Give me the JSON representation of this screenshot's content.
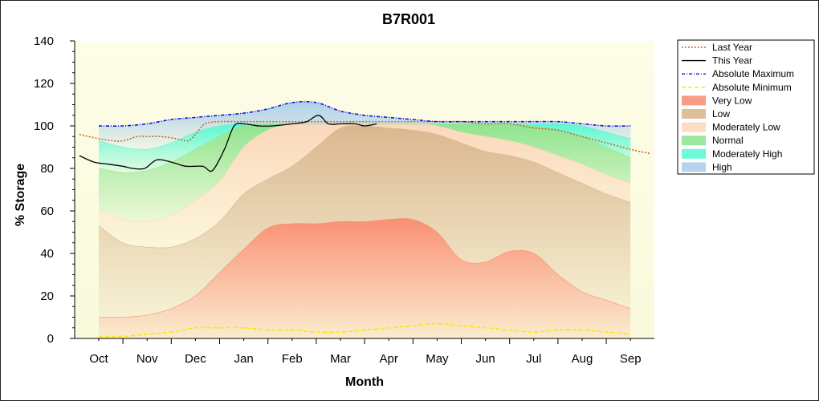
{
  "chart_data": {
    "type": "area",
    "title": "B7R001",
    "xlabel": "Month",
    "ylabel": "% Storage",
    "ylim": [
      0,
      140
    ],
    "yticks": [
      0,
      20,
      40,
      60,
      80,
      100,
      120,
      140
    ],
    "categories": [
      "Oct",
      "Nov",
      "Dec",
      "Jan",
      "Feb",
      "Mar",
      "Apr",
      "May",
      "Jun",
      "Jul",
      "Aug",
      "Sep"
    ],
    "legend_position": "right",
    "bands": [
      {
        "name": "Very Low",
        "color": "#f98a6e",
        "x": [
          0,
          0.5,
          1,
          1.5,
          2,
          2.5,
          3,
          3.5,
          4,
          4.5,
          5,
          5.5,
          6,
          6.5,
          7,
          7.5,
          8,
          8.5,
          9,
          9.5,
          10,
          10.5,
          11
        ],
        "lower": [
          0,
          0,
          0,
          0,
          0,
          0,
          0,
          0,
          0,
          0,
          0,
          0,
          0,
          0,
          0,
          0,
          0,
          0,
          0,
          0,
          0,
          0,
          0
        ],
        "upper": [
          10,
          10,
          11,
          14,
          20,
          31,
          42,
          52,
          54,
          54,
          55,
          55,
          56,
          56,
          50,
          37,
          36,
          41,
          40,
          30,
          22,
          18,
          14
        ]
      },
      {
        "name": "Low",
        "color": "#d9b38b",
        "x": [
          0,
          0.5,
          1,
          1.5,
          2,
          2.5,
          3,
          3.5,
          4,
          4.5,
          5,
          5.5,
          6,
          6.5,
          7,
          7.5,
          8,
          8.5,
          9,
          9.5,
          10,
          10.5,
          11
        ],
        "upper": [
          53,
          45,
          43,
          43,
          47,
          55,
          68,
          75,
          81,
          90,
          99,
          100,
          99,
          98,
          96,
          92,
          88,
          86,
          83,
          78,
          73,
          68,
          64
        ]
      },
      {
        "name": "Moderately Low",
        "color": "#fbd6b8",
        "x": [
          0,
          0.5,
          1,
          1.5,
          2,
          2.5,
          3,
          3.5,
          4,
          4.5,
          5,
          5.5,
          6,
          6.5,
          7,
          7.5,
          8,
          8.5,
          9,
          9.5,
          10,
          10.5,
          11
        ],
        "upper": [
          61,
          56,
          55,
          58,
          65,
          74,
          90,
          98,
          101,
          101,
          101,
          101,
          101,
          101,
          100,
          97,
          95,
          93,
          90,
          86,
          82,
          77,
          73
        ]
      },
      {
        "name": "Normal",
        "color": "#8ae38a",
        "x": [
          0,
          0.5,
          1,
          1.5,
          2,
          2.5,
          3,
          3.5,
          4,
          4.5,
          5,
          5.5,
          6,
          6.5,
          7,
          7.5,
          8,
          8.5,
          9,
          9.5,
          10,
          10.5,
          11
        ],
        "upper": [
          80,
          78,
          79,
          83,
          89,
          95,
          100,
          101,
          101,
          101,
          101,
          101,
          101,
          101,
          101,
          101,
          101,
          101,
          100,
          98,
          95,
          90,
          85
        ]
      },
      {
        "name": "Moderately High",
        "color": "#54f7d2",
        "x": [
          0,
          0.5,
          1,
          1.5,
          2,
          2.5,
          3,
          3.5,
          4,
          4.5,
          5,
          5.5,
          6,
          6.5,
          7,
          7.5,
          8,
          8.5,
          9,
          9.5,
          10,
          10.5,
          11
        ],
        "upper": [
          93,
          90,
          89,
          92,
          97,
          100,
          101,
          101,
          101,
          101,
          101,
          101,
          101,
          101,
          101,
          101,
          101,
          101,
          101,
          101,
          100,
          97,
          94
        ]
      },
      {
        "name": "High",
        "color": "#a9cdea",
        "x": [
          0,
          0.5,
          1,
          1.5,
          2,
          2.5,
          3,
          3.5,
          4,
          4.5,
          5,
          5.5,
          6,
          6.5,
          7,
          7.5,
          8,
          8.5,
          9,
          9.5,
          10,
          10.5,
          11
        ],
        "upper": [
          100,
          100,
          101,
          103,
          104,
          105,
          106,
          108,
          111,
          111,
          107,
          105,
          104,
          103,
          102,
          102,
          102,
          102,
          102,
          102,
          101,
          100,
          100
        ]
      }
    ],
    "series": [
      {
        "name": "Last Year",
        "color": "#c46a2e",
        "style": "dotted",
        "x": [
          -0.4,
          0,
          0.3,
          0.5,
          0.8,
          1,
          1.3,
          1.6,
          1.85,
          2,
          2.2,
          2.5,
          3,
          3.5,
          4,
          4.5,
          5,
          5.5,
          6,
          6.5,
          7,
          7.5,
          8,
          8.5,
          9,
          9.5,
          10,
          10.5,
          11,
          11.4
        ],
        "y": [
          96,
          94,
          93,
          93,
          95,
          95,
          95,
          94,
          93,
          96,
          101,
          102,
          102,
          102,
          102,
          102,
          102,
          102,
          102,
          102,
          102,
          102,
          101,
          101,
          99,
          98,
          95,
          92,
          89,
          87
        ]
      },
      {
        "name": "This Year",
        "color": "#000000",
        "style": "solid",
        "x": [
          -0.4,
          -0.1,
          0.2,
          0.5,
          0.7,
          0.95,
          1.2,
          1.5,
          1.8,
          2.15,
          2.35,
          2.6,
          2.8,
          3.0,
          3.3,
          3.6,
          4.0,
          4.3,
          4.55,
          4.75,
          5.0,
          5.3,
          5.5,
          5.75
        ],
        "y": [
          86,
          83,
          82,
          81,
          80,
          80,
          84,
          83,
          81,
          81,
          79,
          89,
          100,
          101,
          100,
          100,
          101,
          102,
          105,
          101,
          101,
          101,
          100,
          101
        ]
      },
      {
        "name": "Absolute Maximum",
        "color": "#1515d6",
        "style": "dashdot",
        "x": [
          0,
          0.5,
          1,
          1.5,
          2,
          2.5,
          3,
          3.5,
          4,
          4.5,
          5,
          5.5,
          6,
          6.5,
          7,
          7.5,
          8,
          8.5,
          9,
          9.5,
          10,
          10.5,
          11
        ],
        "y": [
          100,
          100,
          101,
          103,
          104,
          105,
          106,
          108,
          111,
          111,
          107,
          105,
          104,
          103,
          102,
          102,
          102,
          102,
          102,
          102,
          101,
          100,
          100
        ]
      },
      {
        "name": "Absolute Minimum",
        "color": "#ffe600",
        "style": "dashed",
        "x": [
          0,
          0.5,
          1,
          1.5,
          2,
          2.5,
          3,
          3.5,
          4,
          4.5,
          5,
          5.5,
          6,
          6.5,
          7,
          7.5,
          8,
          8.5,
          9,
          9.5,
          10,
          10.5,
          11
        ],
        "y": [
          1,
          1,
          2,
          3,
          5,
          5,
          5,
          4,
          4,
          3,
          3,
          4,
          5,
          6,
          7,
          6,
          5,
          4,
          3,
          4,
          4,
          3,
          2
        ]
      }
    ],
    "legend": [
      "Last Year",
      "This Year",
      "Absolute Maximum",
      "Absolute Minimum",
      "Very Low",
      "Low",
      "Moderately Low",
      "Normal",
      "Moderately High",
      "High"
    ]
  }
}
